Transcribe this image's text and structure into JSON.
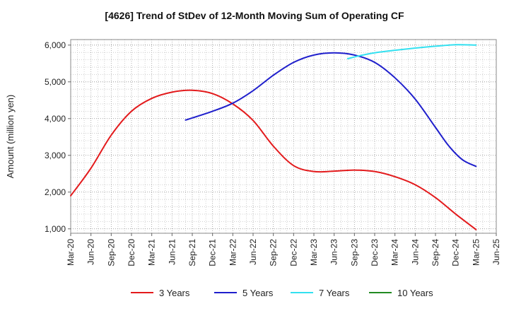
{
  "chart_data": {
    "type": "line",
    "title": "[4626]  Trend of StDev of 12-Month Moving Sum of Operating CF",
    "ylabel": "Amount (million yen)",
    "xlabel": "",
    "ylim": [
      880,
      6150
    ],
    "yticks": [
      1000,
      2000,
      3000,
      4000,
      5000,
      6000
    ],
    "ytick_labels": [
      "1,000",
      "2,000",
      "3,000",
      "4,000",
      "5,000",
      "6,000"
    ],
    "xlim": [
      "2020-03",
      "2025-06"
    ],
    "xtick_labels": [
      "Mar-20",
      "Jun-20",
      "Sep-20",
      "Dec-20",
      "Mar-21",
      "Jun-21",
      "Sep-21",
      "Dec-21",
      "Mar-22",
      "Jun-22",
      "Sep-22",
      "Dec-22",
      "Mar-23",
      "Jun-23",
      "Sep-23",
      "Dec-23",
      "Mar-24",
      "Jun-24",
      "Sep-24",
      "Dec-24",
      "Mar-25",
      "Jun-25"
    ],
    "grid": true,
    "legend_position": "bottom",
    "series": [
      {
        "name": "3 Years",
        "color": "#e31a1c",
        "points": [
          [
            "2020-03",
            1900
          ],
          [
            "2020-06",
            2650
          ],
          [
            "2020-09",
            3550
          ],
          [
            "2020-12",
            4200
          ],
          [
            "2021-03",
            4550
          ],
          [
            "2021-06",
            4720
          ],
          [
            "2021-09",
            4770
          ],
          [
            "2021-12",
            4680
          ],
          [
            "2022-03",
            4400
          ],
          [
            "2022-06",
            3950
          ],
          [
            "2022-09",
            3250
          ],
          [
            "2022-12",
            2720
          ],
          [
            "2023-03",
            2560
          ],
          [
            "2023-06",
            2570
          ],
          [
            "2023-09",
            2600
          ],
          [
            "2023-12",
            2560
          ],
          [
            "2024-03",
            2420
          ],
          [
            "2024-06",
            2200
          ],
          [
            "2024-09",
            1850
          ],
          [
            "2024-12",
            1400
          ],
          [
            "2025-03",
            980
          ]
        ]
      },
      {
        "name": "5 Years",
        "color": "#1f1fcc",
        "points": [
          [
            "2021-08",
            3960
          ],
          [
            "2021-12",
            4200
          ],
          [
            "2022-03",
            4420
          ],
          [
            "2022-06",
            4760
          ],
          [
            "2022-09",
            5180
          ],
          [
            "2022-12",
            5530
          ],
          [
            "2023-03",
            5730
          ],
          [
            "2023-06",
            5790
          ],
          [
            "2023-09",
            5730
          ],
          [
            "2023-12",
            5530
          ],
          [
            "2024-03",
            5110
          ],
          [
            "2024-06",
            4530
          ],
          [
            "2024-09",
            3760
          ],
          [
            "2024-11",
            3250
          ],
          [
            "2025-01",
            2880
          ],
          [
            "2025-03",
            2700
          ]
        ]
      },
      {
        "name": "7 Years",
        "color": "#33e0f0",
        "points": [
          [
            "2023-08",
            5630
          ],
          [
            "2023-10",
            5720
          ],
          [
            "2023-12",
            5790
          ],
          [
            "2024-03",
            5860
          ],
          [
            "2024-06",
            5920
          ],
          [
            "2024-09",
            5970
          ],
          [
            "2024-12",
            6010
          ],
          [
            "2025-03",
            6000
          ]
        ]
      },
      {
        "name": "10 Years",
        "color": "#228b22",
        "points": []
      }
    ]
  }
}
